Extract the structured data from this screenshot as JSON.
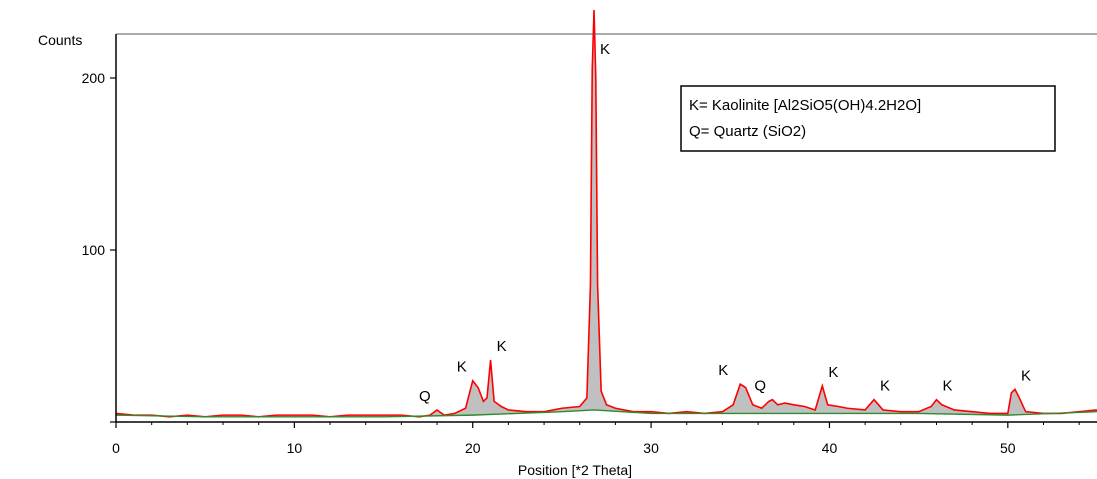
{
  "chart_data": {
    "type": "line",
    "xlabel": "Position [*2 Theta]",
    "ylabel": "Counts",
    "xlim": [
      0,
      55
    ],
    "ylim": [
      0,
      225
    ],
    "x_ticks": [
      0,
      10,
      20,
      30,
      40,
      50
    ],
    "y_ticks": [
      100,
      200
    ],
    "grid": false,
    "legend_placement": "top-right",
    "legend": [
      "K= Kaolinite [Al2SiO5(OH)4.2H2O]",
      "Q= Quartz (SiO2)"
    ],
    "colors": {
      "pattern": "#ff0000",
      "background": "#2e8b2e",
      "fill": "#c0c0c0",
      "axis": "#000000",
      "frame": "#555555"
    },
    "peaks": [
      {
        "label": "Q",
        "x": 18.0,
        "y": 7
      },
      {
        "label": "K",
        "x": 20.0,
        "y": 24
      },
      {
        "label": "K",
        "x": 21.0,
        "y": 36
      },
      {
        "label": "K",
        "x": 26.8,
        "y": 240
      },
      {
        "label": "K",
        "x": 35.0,
        "y": 22
      },
      {
        "label": "Q",
        "x": 36.8,
        "y": 13
      },
      {
        "label": "K",
        "x": 39.6,
        "y": 21
      },
      {
        "label": "K",
        "x": 42.5,
        "y": 13
      },
      {
        "label": "K",
        "x": 46.0,
        "y": 13
      },
      {
        "label": "K",
        "x": 50.4,
        "y": 19
      }
    ],
    "series": [
      {
        "x": [
          0,
          1,
          2,
          3,
          4,
          5,
          6,
          7,
          8,
          9,
          10,
          11,
          12,
          13,
          14,
          15,
          16,
          17,
          17.6,
          18.0,
          18.4,
          19,
          19.6,
          20.0,
          20.3,
          20.6,
          20.8,
          21.0,
          21.2,
          21.6,
          22,
          23,
          24,
          25,
          26,
          26.4,
          26.6,
          26.7,
          26.8,
          26.9,
          27.0,
          27.2,
          27.5,
          28,
          29,
          30,
          31,
          32,
          33,
          34,
          34.6,
          35.0,
          35.3,
          35.7,
          36.2,
          36.6,
          36.8,
          37.1,
          37.5,
          38,
          38.6,
          39.2,
          39.6,
          39.9,
          40.5,
          41,
          42,
          42.5,
          43,
          44,
          45,
          45.7,
          46.0,
          46.3,
          47,
          48,
          49,
          50,
          50.2,
          50.4,
          50.6,
          51,
          52,
          53,
          54,
          55
        ],
        "y": [
          5,
          4,
          4,
          3,
          4,
          3,
          4,
          4,
          3,
          4,
          4,
          4,
          3,
          4,
          4,
          4,
          4,
          3,
          4,
          7,
          4,
          5,
          8,
          24,
          20,
          12,
          14,
          36,
          12,
          9,
          7,
          6,
          6,
          8,
          9,
          14,
          80,
          205,
          240,
          200,
          80,
          18,
          10,
          8,
          6,
          6,
          5,
          6,
          5,
          6,
          10,
          22,
          20,
          10,
          8,
          12,
          13,
          10,
          11,
          10,
          9,
          7,
          21,
          10,
          9,
          8,
          7,
          13,
          7,
          6,
          6,
          9,
          13,
          10,
          7,
          6,
          5,
          5,
          17,
          19,
          15,
          6,
          5,
          5,
          6,
          7
        ]
      },
      {
        "x": [
          0,
          5,
          10,
          15,
          20,
          25,
          26.8,
          30,
          35,
          40,
          45,
          50,
          55
        ],
        "y": [
          4,
          3,
          3,
          3,
          4,
          6,
          7,
          5,
          5,
          5,
          5,
          4,
          6
        ]
      }
    ]
  }
}
